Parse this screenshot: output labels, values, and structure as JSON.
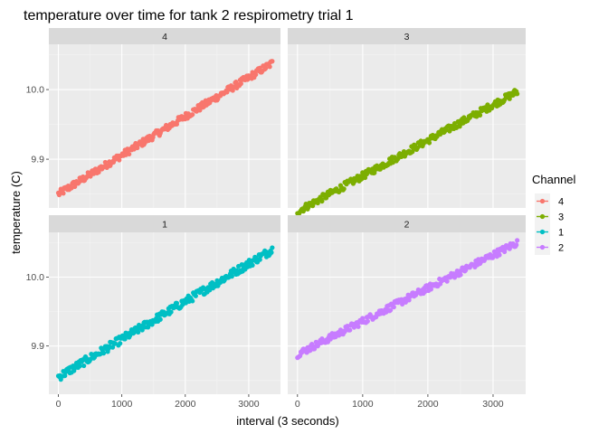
{
  "chart_data": {
    "type": "scatter",
    "title": "temperature over time for tank 2 respirometry trial 1",
    "xlabel": "interval (3 seconds)",
    "ylabel": "temperature (C)",
    "xlim": [
      -150,
      3500
    ],
    "ylim": [
      9.83,
      10.065
    ],
    "x_ticks": [
      0,
      1000,
      2000,
      3000
    ],
    "x_tick_labels": [
      "0",
      "1000",
      "2000",
      "3000"
    ],
    "y_ticks": [
      9.9,
      10.0
    ],
    "y_tick_labels": [
      "9.9",
      "10.0"
    ],
    "grid": true,
    "facets": [
      {
        "label": "4",
        "channel": "4",
        "color": "#F8766D",
        "x_start": 0,
        "x_end": 3370,
        "y_start": 9.85,
        "y_end": 10.038,
        "spread": 0.005
      },
      {
        "label": "3",
        "channel": "3",
        "color": "#7CAE00",
        "x_start": 0,
        "x_end": 3370,
        "y_start": 9.825,
        "y_end": 9.997,
        "spread": 0.005
      },
      {
        "label": "1",
        "channel": "1",
        "color": "#00BFC4",
        "x_start": 0,
        "x_end": 3370,
        "y_start": 9.855,
        "y_end": 10.04,
        "spread": 0.006
      },
      {
        "label": "2",
        "channel": "2",
        "color": "#C77CFF",
        "x_start": 0,
        "x_end": 3370,
        "y_start": 9.888,
        "y_end": 10.05,
        "spread": 0.005
      }
    ],
    "legend": {
      "title": "Channel",
      "placement": "right",
      "entries": [
        {
          "label": "4",
          "color": "#F8766D"
        },
        {
          "label": "3",
          "color": "#7CAE00"
        },
        {
          "label": "1",
          "color": "#00BFC4"
        },
        {
          "label": "2",
          "color": "#C77CFF"
        }
      ]
    }
  }
}
